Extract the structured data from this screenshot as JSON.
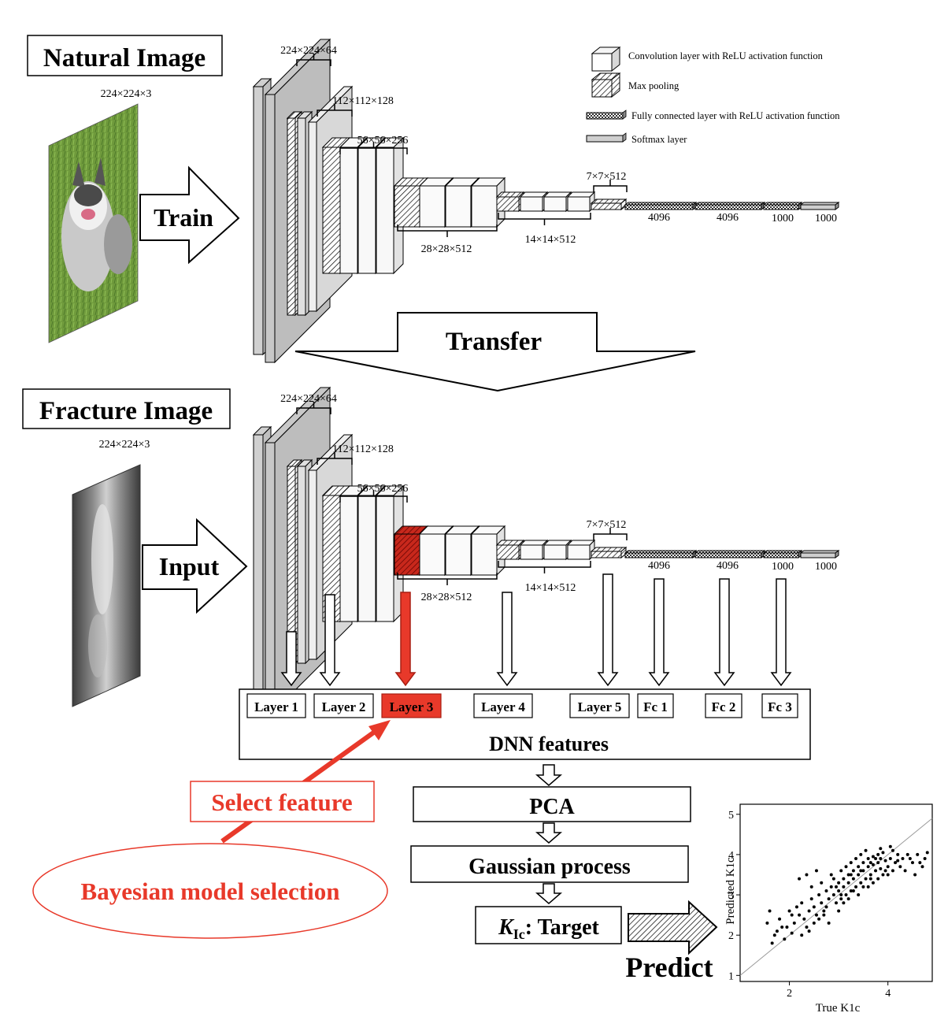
{
  "top": {
    "title": "Natural Image",
    "input_size": "224×224×3",
    "arrow_label": "Train",
    "dims": {
      "b1": "224×224×64",
      "b2": "112×112×128",
      "b3": "56×56×256",
      "b4": "28×28×512",
      "b5": "14×14×512",
      "pool": "7×7×512",
      "fc1": "4096",
      "fc2": "4096",
      "fc3": "1000",
      "soft": "1000"
    }
  },
  "legend": {
    "conv": "Convolution layer with ReLU activation function",
    "pool": "Max pooling",
    "fc": "Fully connected layer with ReLU activation function",
    "softmax": "Softmax layer"
  },
  "transfer_label": "Transfer",
  "bottom": {
    "title": "Fracture Image",
    "input_size": "224×224×3",
    "arrow_label": "Input",
    "dims": {
      "b1": "224×224×64",
      "b2": "112×112×128",
      "b3": "56×56×256",
      "b4": "28×28×512",
      "b5": "14×14×512",
      "pool": "7×7×512",
      "fc1": "4096",
      "fc2": "4096",
      "fc3": "1000",
      "soft": "1000"
    }
  },
  "features": {
    "labels": [
      "Layer 1",
      "Layer 2",
      "Layer 3",
      "Layer 4",
      "Layer 5",
      "Fc 1",
      "Fc 2",
      "Fc 3"
    ],
    "selected_index": 2,
    "box_title": "DNN features"
  },
  "pipeline": {
    "pca": "PCA",
    "gp": "Gaussian process",
    "target_symbol": "K",
    "target_sub": "Ic",
    "target_rest": ": Target",
    "predict": "Predict"
  },
  "selection": {
    "select_feature": "Select feature",
    "bayesian": "Bayesian model selection"
  },
  "colors": {
    "accent_red": "#e8392a",
    "box_gray": "#cccccc"
  },
  "chart_data": {
    "type": "scatter",
    "title": "",
    "xlabel": "True K1c",
    "ylabel": "Predicted K1c",
    "xlim": [
      1.0,
      4.9
    ],
    "ylim": [
      0.85,
      5.25
    ],
    "xticks": [
      2,
      4
    ],
    "yticks": [
      1,
      2,
      3,
      4,
      5
    ],
    "reference_line": "y = x",
    "points": [
      [
        1.55,
        2.3
      ],
      [
        1.7,
        2.0
      ],
      [
        1.8,
        2.4
      ],
      [
        1.95,
        2.2
      ],
      [
        2.0,
        2.6
      ],
      [
        2.1,
        2.3
      ],
      [
        2.2,
        2.5
      ],
      [
        2.25,
        2.8
      ],
      [
        2.3,
        2.4
      ],
      [
        2.4,
        2.6
      ],
      [
        2.45,
        2.9
      ],
      [
        2.5,
        2.7
      ],
      [
        2.55,
        2.5
      ],
      [
        2.6,
        3.0
      ],
      [
        2.65,
        2.8
      ],
      [
        2.7,
        2.6
      ],
      [
        2.75,
        3.1
      ],
      [
        2.8,
        2.9
      ],
      [
        2.85,
        3.2
      ],
      [
        2.9,
        3.0
      ],
      [
        2.95,
        2.8
      ],
      [
        3.0,
        3.3
      ],
      [
        3.0,
        3.1
      ],
      [
        3.05,
        2.9
      ],
      [
        3.1,
        3.4
      ],
      [
        3.1,
        3.2
      ],
      [
        3.15,
        3.0
      ],
      [
        3.2,
        3.5
      ],
      [
        3.2,
        3.3
      ],
      [
        3.25,
        3.1
      ],
      [
        3.3,
        3.6
      ],
      [
        3.3,
        3.4
      ],
      [
        3.35,
        3.2
      ],
      [
        3.4,
        3.7
      ],
      [
        3.4,
        3.5
      ],
      [
        3.45,
        3.3
      ],
      [
        3.5,
        3.8
      ],
      [
        3.5,
        3.6
      ],
      [
        3.55,
        3.4
      ],
      [
        3.6,
        3.9
      ],
      [
        3.6,
        3.7
      ],
      [
        3.65,
        3.5
      ],
      [
        3.7,
        3.95
      ],
      [
        3.7,
        3.75
      ],
      [
        3.75,
        3.6
      ],
      [
        3.8,
        4.0
      ],
      [
        3.8,
        3.8
      ],
      [
        3.85,
        3.65
      ],
      [
        3.9,
        4.05
      ],
      [
        3.95,
        3.85
      ],
      [
        4.0,
        3.7
      ],
      [
        4.05,
        3.9
      ],
      [
        4.1,
        4.1
      ],
      [
        4.15,
        3.8
      ],
      [
        4.2,
        4.0
      ],
      [
        4.3,
        3.9
      ],
      [
        4.4,
        4.0
      ],
      [
        4.5,
        3.8
      ],
      [
        4.6,
        4.0
      ],
      [
        4.7,
        3.7
      ],
      [
        2.35,
        3.5
      ],
      [
        2.55,
        3.6
      ],
      [
        2.2,
        3.4
      ],
      [
        2.8,
        2.3
      ],
      [
        3.0,
        2.6
      ],
      [
        3.2,
        2.9
      ],
      [
        3.4,
        3.0
      ],
      [
        3.6,
        3.2
      ],
      [
        3.8,
        3.4
      ],
      [
        4.0,
        3.5
      ],
      [
        1.9,
        1.9
      ],
      [
        2.05,
        2.05
      ],
      [
        2.15,
        2.7
      ],
      [
        2.35,
        2.2
      ],
      [
        2.45,
        3.2
      ],
      [
        2.6,
        2.4
      ],
      [
        2.75,
        2.7
      ],
      [
        2.9,
        3.4
      ],
      [
        3.05,
        3.6
      ],
      [
        3.15,
        3.7
      ],
      [
        3.25,
        3.8
      ],
      [
        3.35,
        3.9
      ],
      [
        3.45,
        4.0
      ],
      [
        3.55,
        4.1
      ],
      [
        3.65,
        3.4
      ],
      [
        3.75,
        3.9
      ],
      [
        3.85,
        4.15
      ],
      [
        3.95,
        3.6
      ],
      [
        4.05,
        4.2
      ],
      [
        4.25,
        3.7
      ],
      [
        4.35,
        3.6
      ],
      [
        4.55,
        3.5
      ],
      [
        4.75,
        3.9
      ],
      [
        4.8,
        4.05
      ],
      [
        1.6,
        2.6
      ],
      [
        1.75,
        2.1
      ],
      [
        2.65,
        3.3
      ],
      [
        2.85,
        3.5
      ],
      [
        3.1,
        2.8
      ],
      [
        3.3,
        3.1
      ],
      [
        3.5,
        3.2
      ],
      [
        3.7,
        3.3
      ],
      [
        3.9,
        3.5
      ],
      [
        2.4,
        2.1
      ],
      [
        2.5,
        2.3
      ],
      [
        2.7,
        2.5
      ],
      [
        2.95,
        3.2
      ],
      [
        3.05,
        3.0
      ],
      [
        3.25,
        3.5
      ],
      [
        3.45,
        3.6
      ],
      [
        3.65,
        3.8
      ],
      [
        3.85,
        3.9
      ],
      [
        4.1,
        3.6
      ],
      [
        4.2,
        3.85
      ],
      [
        4.45,
        3.9
      ],
      [
        4.65,
        3.8
      ],
      [
        1.65,
        1.8
      ],
      [
        1.85,
        2.2
      ],
      [
        2.25,
        2.0
      ],
      [
        2.05,
        2.5
      ]
    ]
  }
}
